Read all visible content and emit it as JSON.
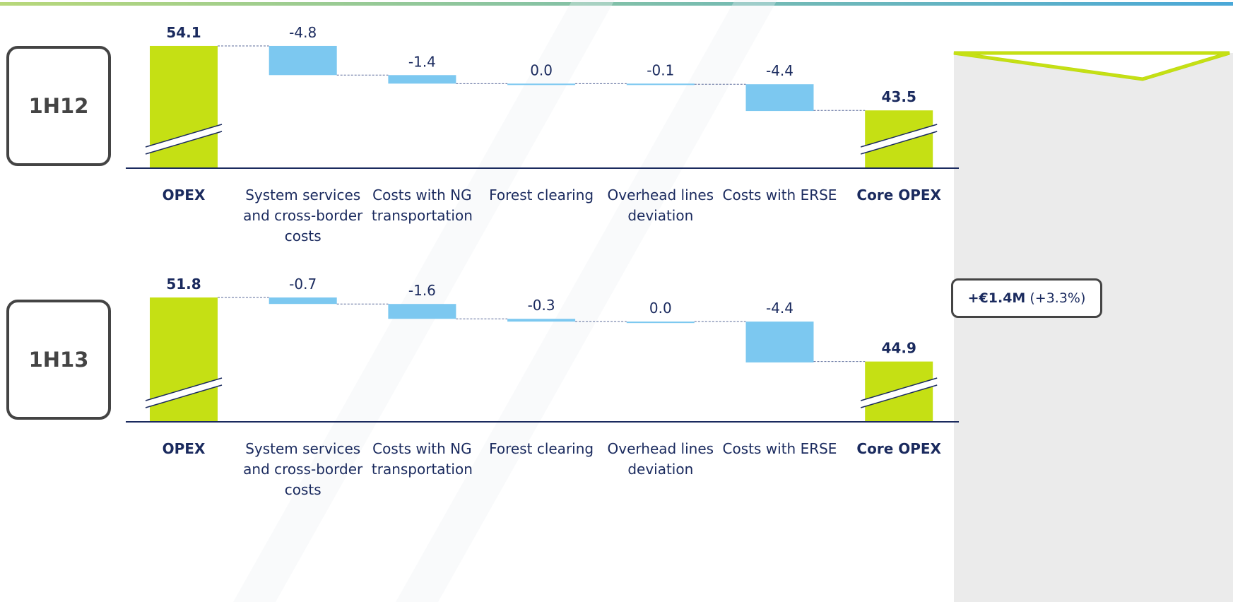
{
  "chart_data": [
    {
      "type": "waterfall",
      "label": "1H12",
      "categories": [
        "OPEX",
        "System services and cross-border costs",
        "Costs with NG transportation",
        "Forest clearing",
        "Overhead lines deviation",
        "Costs with ERSE",
        "Core OPEX"
      ],
      "measure": [
        "absolute",
        "relative",
        "relative",
        "relative",
        "relative",
        "relative",
        "total"
      ],
      "values": [
        54.1,
        -4.8,
        -1.4,
        0.0,
        -0.1,
        -4.4,
        43.5
      ],
      "value_labels": [
        "54.1",
        "-4.8",
        "-1.4",
        "0.0",
        "-0.1",
        "-4.4",
        "43.5"
      ],
      "total_color": "#c5e014",
      "delta_color": "#7cc8f0",
      "ylim": [
        34,
        57
      ]
    },
    {
      "type": "waterfall",
      "label": "1H13",
      "categories": [
        "OPEX",
        "System services and cross-border costs",
        "Costs with NG transportation",
        "Forest clearing",
        "Overhead lines deviation",
        "Costs with ERSE",
        "Core OPEX"
      ],
      "measure": [
        "absolute",
        "relative",
        "relative",
        "relative",
        "relative",
        "relative",
        "total"
      ],
      "values": [
        51.8,
        -0.7,
        -1.6,
        -0.3,
        0.0,
        -4.4,
        44.9
      ],
      "value_labels": [
        "51.8",
        "-0.7",
        "-1.6",
        "-0.3",
        "0.0",
        "-4.4",
        "44.9"
      ],
      "total_color": "#c5e014",
      "delta_color": "#7cc8f0",
      "ylim": [
        38.4,
        53.4
      ]
    }
  ],
  "annotation": {
    "bold": "+€1.4M",
    "text": "(+3.3%)"
  }
}
